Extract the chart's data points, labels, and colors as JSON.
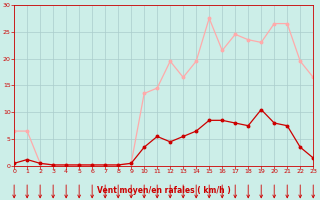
{
  "hours": [
    0,
    1,
    2,
    3,
    4,
    5,
    6,
    7,
    8,
    9,
    10,
    11,
    12,
    13,
    14,
    15,
    16,
    17,
    18,
    19,
    20,
    21,
    22,
    23
  ],
  "avg_wind": [
    0.5,
    1.2,
    0.5,
    0.2,
    0.2,
    0.2,
    0.2,
    0.2,
    0.2,
    0.5,
    3.5,
    5.5,
    4.5,
    5.5,
    6.5,
    8.5,
    8.5,
    8.0,
    7.5,
    10.5,
    8.0,
    7.5,
    3.5,
    1.5
  ],
  "gust_wind": [
    6.5,
    6.5,
    0.5,
    0.2,
    0.2,
    0.2,
    0.2,
    0.2,
    0.2,
    0.5,
    13.5,
    14.5,
    19.5,
    16.5,
    19.5,
    27.5,
    21.5,
    24.5,
    23.5,
    23.0,
    26.5,
    26.5,
    19.5,
    16.5
  ],
  "avg_color": "#cc0000",
  "gust_color": "#ffaaaa",
  "bg_color": "#cceee8",
  "grid_color": "#aacccc",
  "axis_color": "#cc0000",
  "tick_color": "#cc0000",
  "xlabel": "Vent moyen/en rafales ( km/h )",
  "ylim": [
    0,
    30
  ],
  "xlim": [
    0,
    23
  ],
  "yticks": [
    0,
    5,
    10,
    15,
    20,
    25,
    30
  ],
  "xticks": [
    0,
    1,
    2,
    3,
    4,
    5,
    6,
    7,
    8,
    9,
    10,
    11,
    12,
    13,
    14,
    15,
    16,
    17,
    18,
    19,
    20,
    21,
    22,
    23
  ]
}
